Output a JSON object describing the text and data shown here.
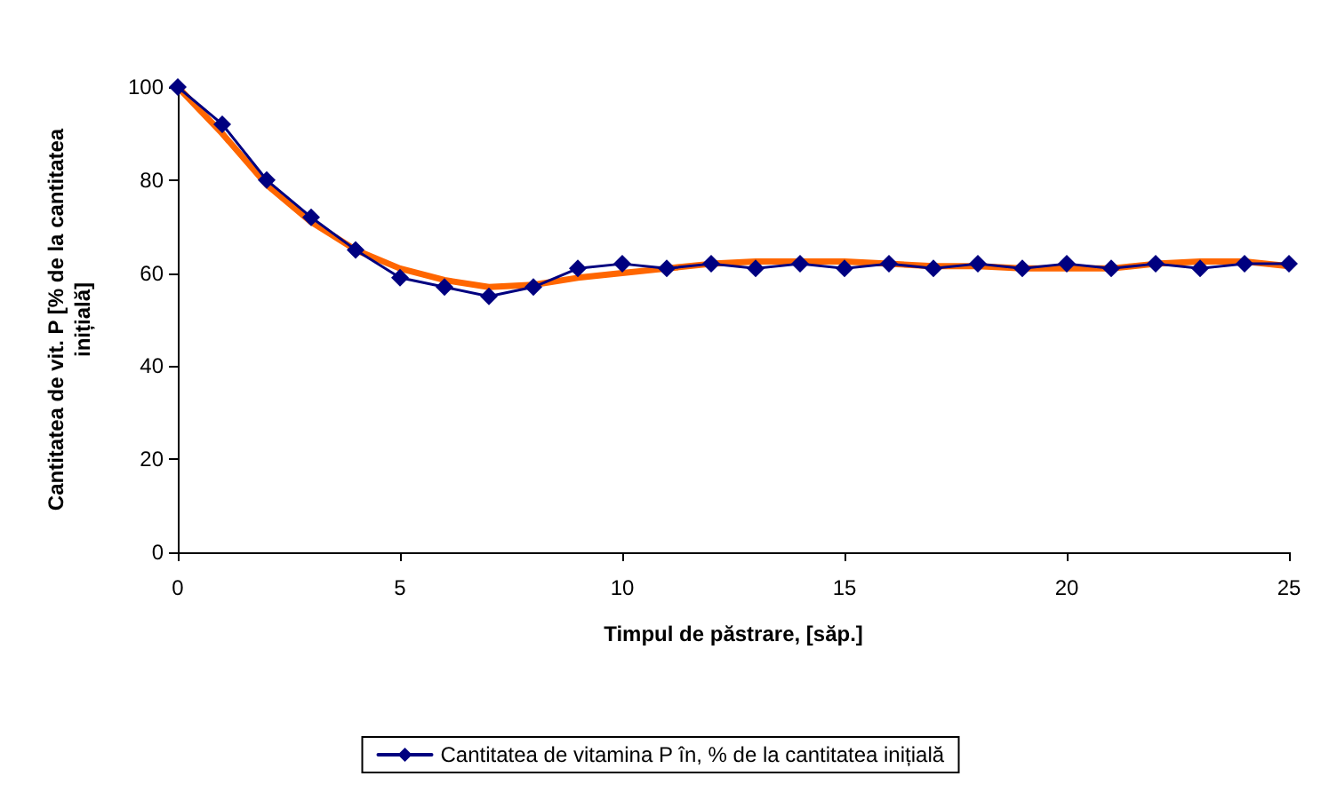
{
  "chart_data": {
    "type": "line",
    "xlabel": "Timpul de păstrare, [săp.]",
    "ylabel": "Cantitatea de vit. P [% de la cantitatea inițială]",
    "x": [
      0,
      1,
      2,
      3,
      4,
      5,
      6,
      7,
      8,
      9,
      10,
      11,
      12,
      13,
      14,
      15,
      16,
      17,
      18,
      19,
      20,
      21,
      22,
      23,
      24,
      25
    ],
    "series": [
      {
        "name": "Cantitatea de vitamina P în, % de la cantitatea inițială",
        "color": "#000080",
        "values": [
          100,
          92,
          80,
          72,
          65,
          59,
          57,
          55,
          57,
          61,
          62,
          61,
          62,
          61,
          62,
          61,
          62,
          61,
          62,
          61,
          62,
          61,
          62,
          61,
          62,
          62
        ]
      },
      {
        "color": "#ff6600",
        "marker": "none",
        "values": [
          100,
          90,
          79,
          71,
          65,
          61,
          58.5,
          57,
          57.5,
          59,
          60,
          61,
          62,
          62.5,
          62.5,
          62.5,
          62,
          61.5,
          61.5,
          61,
          61,
          61,
          62,
          62.5,
          62.5,
          61.5
        ]
      }
    ],
    "xlim": [
      0,
      25
    ],
    "xticks": [
      0,
      5,
      10,
      15,
      20,
      25
    ],
    "ylim": [
      0,
      100
    ],
    "yticks": [
      0,
      20,
      40,
      60,
      80,
      100
    ],
    "grid": false,
    "legend": "bottom",
    "marker": "diamond",
    "line_style": "solid"
  }
}
